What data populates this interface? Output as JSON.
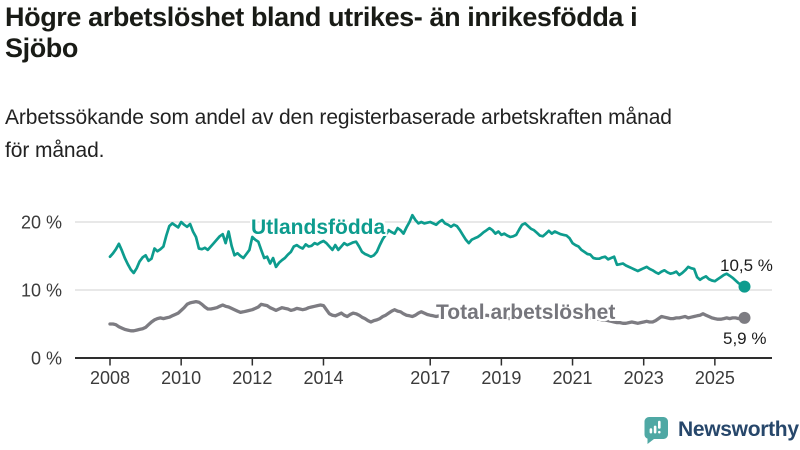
{
  "header": {
    "title_line1": "Högre arbetslöshet bland utrikes- än inrikesfödda i",
    "title_line2": "Sjöbo",
    "subtitle_line1": "Arbetssökande som andel av den registerbaserade arbetskraften månad",
    "subtitle_line2": "för månad."
  },
  "footer": {
    "brand": "Newsworthy",
    "logo_icon": "bar-chart-speech-bubble-icon"
  },
  "colors": {
    "series_utlandsfodda": "#0d9c8e",
    "series_total": "#7d7c82",
    "gridline": "#dadada",
    "axis": "#2e2e2e",
    "tick_text": "#3b3b3b",
    "title_text": "#191b16",
    "logo_teal": "#4fa8a4",
    "logo_text": "#27476b"
  },
  "chart_data": {
    "type": "line",
    "title": "Högre arbetslöshet bland utrikes- än inrikesfödda i Sjöbo",
    "subtitle": "Arbetssökande som andel av den registerbaserade arbetskraften månad för månad.",
    "x_unit": "month",
    "x_start": 2008.0,
    "x_step": 0.0833333,
    "x_end": 2025.833,
    "xlim": [
      2007.0,
      2026.6
    ],
    "ylim": [
      0,
      23.5
    ],
    "grid": "horizontal",
    "legend_position": "inline-labels",
    "x_ticks": [
      2008,
      2010,
      2012,
      2014,
      2017,
      2019,
      2021,
      2023,
      2025
    ],
    "x_tick_labels": [
      "2008",
      "2010",
      "2012",
      "2014",
      "2017",
      "2019",
      "2021",
      "2023",
      "2025"
    ],
    "y_ticks": [
      0,
      10,
      20
    ],
    "y_tick_labels": [
      "0 %",
      "10 %",
      "20 %"
    ],
    "series": [
      {
        "name": "Utlandsfödda",
        "color": "#0d9c8e",
        "end_label": "10,5 %",
        "end_value": 10.5,
        "values": [
          14.9,
          15.4,
          16.0,
          16.8,
          15.8,
          14.7,
          13.8,
          13.0,
          12.5,
          13.2,
          14.2,
          14.8,
          15.1,
          14.3,
          14.6,
          16.1,
          15.7,
          16.0,
          16.4,
          18.0,
          19.4,
          19.8,
          19.5,
          19.2,
          20.0,
          19.6,
          19.3,
          19.7,
          18.6,
          17.8,
          16.1,
          16.0,
          16.2,
          15.9,
          16.4,
          16.9,
          17.4,
          17.9,
          18.2,
          16.9,
          18.6,
          16.5,
          15.1,
          15.4,
          15.0,
          14.7,
          15.3,
          15.9,
          17.8,
          17.4,
          17.1,
          15.9,
          14.7,
          14.9,
          13.9,
          14.7,
          13.4,
          14.0,
          14.4,
          14.7,
          15.2,
          15.6,
          16.4,
          16.6,
          16.3,
          16.1,
          16.7,
          16.4,
          16.5,
          16.9,
          16.7,
          17.0,
          17.2,
          16.9,
          16.4,
          15.9,
          16.6,
          15.9,
          16.4,
          16.9,
          16.6,
          16.8,
          17.0,
          17.1,
          16.4,
          15.6,
          15.3,
          15.1,
          14.9,
          15.1,
          15.6,
          16.6,
          17.5,
          18.1,
          18.8,
          18.5,
          18.3,
          19.1,
          18.8,
          18.3,
          19.2,
          20.0,
          21.0,
          20.3,
          19.8,
          20.0,
          19.8,
          19.9,
          20.0,
          19.8,
          19.6,
          20.0,
          20.3,
          19.8,
          19.6,
          19.3,
          19.6,
          19.4,
          18.8,
          18.1,
          17.4,
          16.9,
          17.4,
          17.6,
          17.8,
          18.1,
          18.5,
          18.8,
          19.1,
          18.8,
          18.3,
          18.6,
          18.1,
          18.3,
          18.0,
          17.8,
          17.9,
          18.1,
          18.9,
          19.6,
          19.8,
          19.4,
          19.0,
          18.8,
          18.4,
          18.0,
          17.9,
          18.3,
          18.7,
          18.3,
          18.6,
          18.4,
          18.2,
          18.1,
          18.0,
          17.6,
          16.9,
          16.6,
          16.4,
          15.9,
          15.6,
          15.3,
          15.2,
          14.7,
          14.6,
          14.6,
          14.8,
          14.9,
          14.5,
          14.7,
          14.9,
          13.7,
          13.8,
          13.9,
          13.6,
          13.4,
          13.2,
          13.0,
          12.8,
          13.0,
          13.2,
          13.4,
          13.1,
          12.9,
          12.6,
          12.4,
          12.7,
          12.9,
          12.6,
          12.4,
          12.5,
          12.7,
          12.2,
          12.5,
          12.9,
          13.4,
          13.2,
          13.1,
          11.9,
          11.5,
          11.8,
          12.0,
          11.6,
          11.4,
          11.3,
          11.6,
          11.9,
          12.2,
          12.4,
          12.1,
          11.8,
          11.4,
          11.0,
          10.7,
          10.5
        ]
      },
      {
        "name": "Total arbetslöshet",
        "color": "#7d7c82",
        "end_label": "5,9 %",
        "end_value": 5.9,
        "values": [
          5.0,
          5.0,
          4.9,
          4.6,
          4.4,
          4.2,
          4.1,
          4.0,
          4.0,
          4.1,
          4.2,
          4.3,
          4.5,
          4.9,
          5.3,
          5.6,
          5.8,
          5.9,
          5.8,
          5.9,
          6.0,
          6.2,
          6.4,
          6.6,
          7.0,
          7.4,
          7.9,
          8.1,
          8.2,
          8.3,
          8.2,
          7.9,
          7.5,
          7.2,
          7.2,
          7.3,
          7.4,
          7.6,
          7.8,
          7.6,
          7.5,
          7.3,
          7.1,
          6.9,
          6.7,
          6.8,
          6.9,
          7.0,
          7.1,
          7.3,
          7.5,
          7.9,
          7.8,
          7.7,
          7.4,
          7.2,
          7.0,
          7.2,
          7.4,
          7.3,
          7.2,
          7.0,
          7.1,
          7.3,
          7.2,
          7.1,
          7.2,
          7.4,
          7.5,
          7.6,
          7.7,
          7.8,
          7.7,
          7.1,
          6.5,
          6.3,
          6.2,
          6.4,
          6.6,
          6.3,
          6.1,
          6.4,
          6.6,
          6.5,
          6.3,
          6.0,
          5.8,
          5.5,
          5.3,
          5.5,
          5.6,
          5.8,
          6.1,
          6.3,
          6.6,
          6.9,
          7.1,
          6.9,
          6.8,
          6.5,
          6.3,
          6.2,
          6.1,
          6.3,
          6.6,
          6.8,
          6.6,
          6.4,
          6.3,
          6.2,
          6.1,
          6.2,
          6.3,
          6.4,
          6.3,
          6.4,
          6.5,
          6.4,
          6.5,
          6.6,
          6.5,
          6.4,
          6.3,
          6.2,
          6.2,
          6.1,
          6.2,
          6.3,
          6.2,
          6.1,
          6.0,
          6.1,
          6.0,
          5.9,
          5.8,
          5.8,
          5.7,
          5.8,
          5.9,
          6.0,
          5.9,
          5.8,
          5.9,
          6.0,
          6.1,
          6.2,
          6.5,
          6.9,
          7.2,
          7.3,
          7.2,
          7.1,
          7.0,
          6.9,
          6.8,
          6.7,
          6.6,
          6.5,
          6.4,
          6.2,
          6.1,
          6.0,
          5.9,
          5.8,
          5.7,
          5.7,
          5.6,
          5.6,
          5.5,
          5.4,
          5.3,
          5.2,
          5.2,
          5.1,
          5.1,
          5.2,
          5.3,
          5.2,
          5.1,
          5.2,
          5.3,
          5.4,
          5.3,
          5.3,
          5.5,
          5.8,
          6.1,
          6.0,
          5.9,
          5.8,
          5.8,
          5.9,
          5.9,
          6.0,
          6.1,
          5.9,
          6.0,
          6.1,
          6.2,
          6.3,
          6.5,
          6.3,
          6.1,
          5.9,
          5.8,
          5.7,
          5.7,
          5.8,
          5.9,
          5.8,
          5.9,
          5.9,
          5.8,
          5.8,
          5.9
        ]
      }
    ]
  }
}
